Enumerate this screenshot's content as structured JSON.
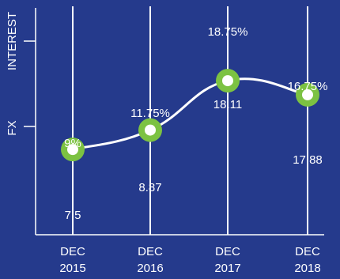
{
  "colors": {
    "background": "#253a8c",
    "line": "#ffffff",
    "marker_ring": "#7cc242",
    "marker_center": "#ffffff",
    "text": "#ffffff"
  },
  "chart_data": {
    "type": "line",
    "title": "",
    "categories": [
      [
        "DEC",
        "2015"
      ],
      [
        "DEC",
        "2016"
      ],
      [
        "DEC",
        "2017"
      ],
      [
        "DEC",
        "2018"
      ]
    ],
    "y_axis_labels": [
      "INTEREST",
      "FX"
    ],
    "series": [
      {
        "name": "INTEREST",
        "values": [
          9,
          11.75,
          18.75,
          16.75
        ],
        "labels": [
          "9%",
          "11.75%",
          "18.75%",
          "16.75%"
        ]
      },
      {
        "name": "FX",
        "values": [
          7.5,
          8.87,
          18.11,
          17.88
        ],
        "labels": [
          "7.5",
          "8.87",
          "18.11",
          "17.88"
        ]
      }
    ],
    "line_series": "INTEREST",
    "grid": "vertical",
    "legend": "none"
  }
}
